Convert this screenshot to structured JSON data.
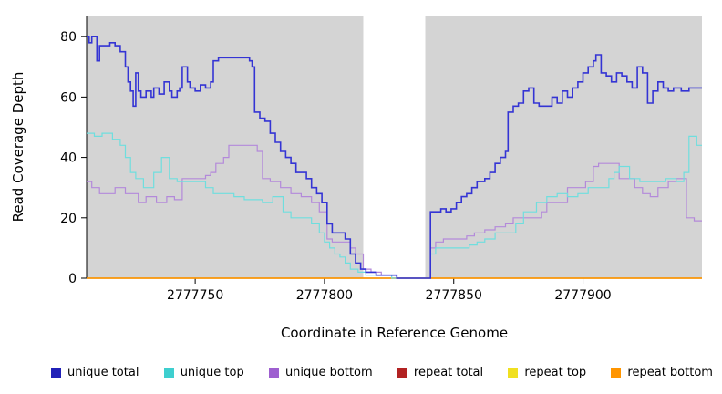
{
  "chart_data": {
    "type": "line",
    "step": true,
    "title": "",
    "xlabel": "Coordinate in Reference Genome",
    "ylabel": "Read Coverage Depth",
    "xlim": [
      2777708,
      2777946
    ],
    "ylim": [
      0,
      87
    ],
    "x_ticks": [
      2777750,
      2777800,
      2777850,
      2777900
    ],
    "y_ticks": [
      0,
      20,
      40,
      60,
      80
    ],
    "grid": false,
    "legend_position": "bottom",
    "shaded_regions": [
      {
        "x0": 2777708,
        "x1": 2777815,
        "color": "#d4d4d4"
      },
      {
        "x0": 2777839,
        "x1": 2777946,
        "color": "#d4d4d4"
      }
    ],
    "series": [
      {
        "name": "repeat total",
        "color": "#b22222",
        "width": 1.2,
        "points": [
          [
            2777708,
            0
          ],
          [
            2777946,
            0
          ]
        ]
      },
      {
        "name": "repeat top",
        "color": "#f0e020",
        "width": 1.2,
        "points": [
          [
            2777708,
            0
          ],
          [
            2777946,
            0
          ]
        ]
      },
      {
        "name": "repeat bottom",
        "color": "#ff9500",
        "width": 1.5,
        "points": [
          [
            2777708,
            0
          ],
          [
            2777946,
            0
          ]
        ]
      },
      {
        "name": "unique bottom",
        "color": "#b389da",
        "width": 1.2,
        "points": [
          [
            2777708,
            32
          ],
          [
            2777710,
            30
          ],
          [
            2777713,
            28
          ],
          [
            2777719,
            30
          ],
          [
            2777723,
            28
          ],
          [
            2777728,
            25
          ],
          [
            2777731,
            27
          ],
          [
            2777735,
            25
          ],
          [
            2777739,
            27
          ],
          [
            2777742,
            26
          ],
          [
            2777745,
            33
          ],
          [
            2777752,
            33
          ],
          [
            2777754,
            34
          ],
          [
            2777756,
            35
          ],
          [
            2777758,
            38
          ],
          [
            2777761,
            40
          ],
          [
            2777763,
            44
          ],
          [
            2777772,
            44
          ],
          [
            2777774,
            42
          ],
          [
            2777776,
            33
          ],
          [
            2777779,
            32
          ],
          [
            2777783,
            30
          ],
          [
            2777787,
            28
          ],
          [
            2777791,
            27
          ],
          [
            2777795,
            25
          ],
          [
            2777798,
            22
          ],
          [
            2777801,
            13
          ],
          [
            2777803,
            12
          ],
          [
            2777808,
            12
          ],
          [
            2777810,
            10
          ],
          [
            2777812,
            8
          ],
          [
            2777815,
            3
          ],
          [
            2777818,
            2
          ],
          [
            2777822,
            1
          ],
          [
            2777828,
            0
          ],
          [
            2777840,
            0
          ],
          [
            2777841,
            10
          ],
          [
            2777843,
            12
          ],
          [
            2777846,
            13
          ],
          [
            2777855,
            14
          ],
          [
            2777858,
            15
          ],
          [
            2777862,
            16
          ],
          [
            2777866,
            17
          ],
          [
            2777870,
            18
          ],
          [
            2777873,
            20
          ],
          [
            2777882,
            20
          ],
          [
            2777884,
            22
          ],
          [
            2777886,
            25
          ],
          [
            2777892,
            25
          ],
          [
            2777894,
            30
          ],
          [
            2777901,
            32
          ],
          [
            2777904,
            37
          ],
          [
            2777906,
            38
          ],
          [
            2777912,
            38
          ],
          [
            2777914,
            33
          ],
          [
            2777918,
            33
          ],
          [
            2777920,
            30
          ],
          [
            2777923,
            28
          ],
          [
            2777926,
            27
          ],
          [
            2777929,
            30
          ],
          [
            2777933,
            32
          ],
          [
            2777936,
            33
          ],
          [
            2777939,
            33
          ],
          [
            2777940,
            20
          ],
          [
            2777943,
            19
          ],
          [
            2777946,
            19
          ]
        ]
      },
      {
        "name": "unique top",
        "color": "#6fdede",
        "width": 1.2,
        "points": [
          [
            2777708,
            48
          ],
          [
            2777711,
            47
          ],
          [
            2777714,
            48
          ],
          [
            2777718,
            46
          ],
          [
            2777721,
            44
          ],
          [
            2777723,
            40
          ],
          [
            2777725,
            35
          ],
          [
            2777727,
            33
          ],
          [
            2777730,
            30
          ],
          [
            2777734,
            35
          ],
          [
            2777737,
            40
          ],
          [
            2777740,
            33
          ],
          [
            2777743,
            32
          ],
          [
            2777752,
            32
          ],
          [
            2777754,
            30
          ],
          [
            2777757,
            28
          ],
          [
            2777765,
            27
          ],
          [
            2777769,
            26
          ],
          [
            2777776,
            25
          ],
          [
            2777780,
            27
          ],
          [
            2777784,
            22
          ],
          [
            2777787,
            20
          ],
          [
            2777795,
            18
          ],
          [
            2777798,
            15
          ],
          [
            2777800,
            12
          ],
          [
            2777802,
            10
          ],
          [
            2777804,
            8
          ],
          [
            2777806,
            7
          ],
          [
            2777808,
            5
          ],
          [
            2777810,
            3
          ],
          [
            2777813,
            2
          ],
          [
            2777816,
            1
          ],
          [
            2777826,
            0
          ],
          [
            2777840,
            0
          ],
          [
            2777841,
            8
          ],
          [
            2777843,
            10
          ],
          [
            2777856,
            11
          ],
          [
            2777859,
            12
          ],
          [
            2777862,
            13
          ],
          [
            2777866,
            15
          ],
          [
            2777872,
            15
          ],
          [
            2777874,
            18
          ],
          [
            2777877,
            22
          ],
          [
            2777882,
            25
          ],
          [
            2777886,
            27
          ],
          [
            2777890,
            28
          ],
          [
            2777894,
            27
          ],
          [
            2777898,
            28
          ],
          [
            2777902,
            30
          ],
          [
            2777910,
            33
          ],
          [
            2777912,
            35
          ],
          [
            2777914,
            37
          ],
          [
            2777918,
            33
          ],
          [
            2777922,
            32
          ],
          [
            2777932,
            33
          ],
          [
            2777936,
            32
          ],
          [
            2777939,
            35
          ],
          [
            2777941,
            47
          ],
          [
            2777944,
            44
          ],
          [
            2777946,
            44
          ]
        ]
      },
      {
        "name": "unique total",
        "color": "#3434d4",
        "width": 1.6,
        "points": [
          [
            2777708,
            80
          ],
          [
            2777709,
            78
          ],
          [
            2777710,
            80
          ],
          [
            2777712,
            72
          ],
          [
            2777713,
            77
          ],
          [
            2777717,
            78
          ],
          [
            2777719,
            77
          ],
          [
            2777721,
            75
          ],
          [
            2777723,
            70
          ],
          [
            2777724,
            65
          ],
          [
            2777725,
            62
          ],
          [
            2777726,
            57
          ],
          [
            2777727,
            68
          ],
          [
            2777728,
            62
          ],
          [
            2777729,
            60
          ],
          [
            2777731,
            62
          ],
          [
            2777733,
            60
          ],
          [
            2777734,
            63
          ],
          [
            2777736,
            61
          ],
          [
            2777738,
            65
          ],
          [
            2777740,
            62
          ],
          [
            2777741,
            60
          ],
          [
            2777743,
            62
          ],
          [
            2777744,
            63
          ],
          [
            2777745,
            70
          ],
          [
            2777747,
            65
          ],
          [
            2777748,
            63
          ],
          [
            2777750,
            62
          ],
          [
            2777752,
            64
          ],
          [
            2777754,
            63
          ],
          [
            2777756,
            65
          ],
          [
            2777757,
            72
          ],
          [
            2777759,
            73
          ],
          [
            2777769,
            73
          ],
          [
            2777771,
            72
          ],
          [
            2777772,
            70
          ],
          [
            2777773,
            55
          ],
          [
            2777775,
            53
          ],
          [
            2777777,
            52
          ],
          [
            2777779,
            48
          ],
          [
            2777781,
            45
          ],
          [
            2777783,
            42
          ],
          [
            2777785,
            40
          ],
          [
            2777787,
            38
          ],
          [
            2777789,
            35
          ],
          [
            2777793,
            33
          ],
          [
            2777795,
            30
          ],
          [
            2777797,
            28
          ],
          [
            2777799,
            25
          ],
          [
            2777801,
            18
          ],
          [
            2777803,
            15
          ],
          [
            2777808,
            13
          ],
          [
            2777810,
            8
          ],
          [
            2777812,
            5
          ],
          [
            2777814,
            3
          ],
          [
            2777816,
            2
          ],
          [
            2777820,
            1
          ],
          [
            2777824,
            1
          ],
          [
            2777828,
            0
          ],
          [
            2777840,
            0
          ],
          [
            2777841,
            22
          ],
          [
            2777845,
            23
          ],
          [
            2777847,
            22
          ],
          [
            2777849,
            23
          ],
          [
            2777851,
            25
          ],
          [
            2777853,
            27
          ],
          [
            2777855,
            28
          ],
          [
            2777857,
            30
          ],
          [
            2777859,
            32
          ],
          [
            2777862,
            33
          ],
          [
            2777864,
            35
          ],
          [
            2777866,
            38
          ],
          [
            2777868,
            40
          ],
          [
            2777870,
            42
          ],
          [
            2777871,
            55
          ],
          [
            2777873,
            57
          ],
          [
            2777875,
            58
          ],
          [
            2777877,
            62
          ],
          [
            2777879,
            63
          ],
          [
            2777881,
            58
          ],
          [
            2777883,
            57
          ],
          [
            2777887,
            57
          ],
          [
            2777888,
            60
          ],
          [
            2777890,
            58
          ],
          [
            2777892,
            62
          ],
          [
            2777894,
            60
          ],
          [
            2777896,
            63
          ],
          [
            2777898,
            65
          ],
          [
            2777900,
            68
          ],
          [
            2777902,
            70
          ],
          [
            2777904,
            72
          ],
          [
            2777905,
            74
          ],
          [
            2777907,
            68
          ],
          [
            2777909,
            67
          ],
          [
            2777911,
            65
          ],
          [
            2777913,
            68
          ],
          [
            2777915,
            67
          ],
          [
            2777917,
            65
          ],
          [
            2777919,
            63
          ],
          [
            2777921,
            70
          ],
          [
            2777923,
            68
          ],
          [
            2777925,
            58
          ],
          [
            2777927,
            62
          ],
          [
            2777929,
            65
          ],
          [
            2777931,
            63
          ],
          [
            2777933,
            62
          ],
          [
            2777935,
            63
          ],
          [
            2777938,
            62
          ],
          [
            2777941,
            63
          ],
          [
            2777946,
            63
          ]
        ]
      }
    ],
    "legend": [
      {
        "label": "unique total",
        "color": "#2121b8"
      },
      {
        "label": "unique top",
        "color": "#3ecfcf"
      },
      {
        "label": "unique bottom",
        "color": "#9e5fd0"
      },
      {
        "label": "repeat total",
        "color": "#b22222"
      },
      {
        "label": "repeat top",
        "color": "#f0e020"
      },
      {
        "label": "repeat bottom",
        "color": "#ff9500"
      }
    ]
  }
}
